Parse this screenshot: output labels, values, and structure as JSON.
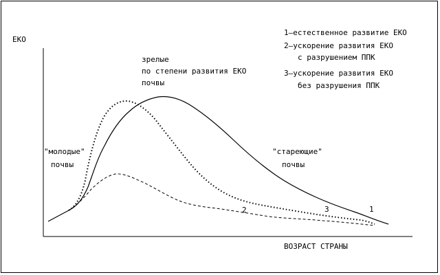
{
  "axes": {
    "y_label": "ЕКО",
    "x_label": "ВОЗРАСТ СТРАНЫ"
  },
  "legend": {
    "item1": "1–естественное развитие ЕКО",
    "item2_line1": "2–ускорение развития ЕКО",
    "item2_line2": "с разрушением ППК",
    "item3_line1": "3–ускорение развития ЕКО",
    "item3_line2": "без разрушения ППК"
  },
  "annotations": {
    "mature_line1": "зрелые",
    "mature_line2": "по степени развития ЕКО",
    "mature_line3": "почвы",
    "young_line1": "\"молодые\"",
    "young_line2": "почвы",
    "aging_line1": "\"стареющие\"",
    "aging_line2": "почвы"
  },
  "curve_labels": {
    "curve1": "1",
    "curve2": "2",
    "curve3": "3"
  },
  "curves": [
    {
      "id": "1",
      "style": "solid"
    },
    {
      "id": "2",
      "style": "dashed"
    },
    {
      "id": "3",
      "style": "dotted"
    }
  ]
}
